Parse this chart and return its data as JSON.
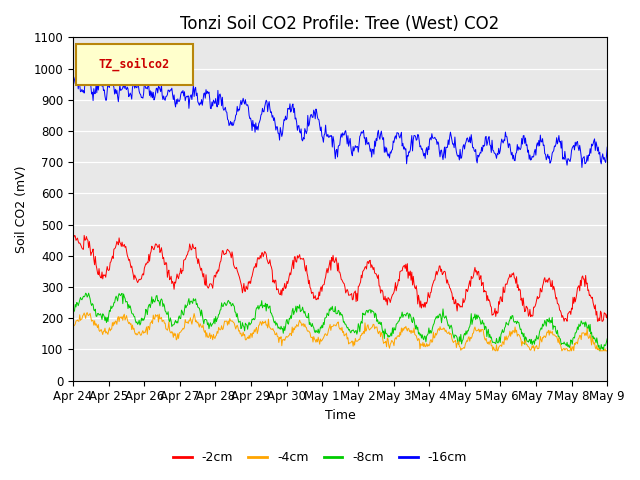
{
  "title": "Tonzi Soil CO2 Profile: Tree (West) CO2",
  "xlabel": "Time",
  "ylabel": "Soil CO2 (mV)",
  "legend_label": "TZ_soilco2",
  "ylim": [
    0,
    1100
  ],
  "series_labels": [
    "-2cm",
    "-4cm",
    "-8cm",
    "-16cm"
  ],
  "series_colors": [
    "#ff0000",
    "#ffa500",
    "#00cc00",
    "#0000ff"
  ],
  "background_color": "#e8e8e8",
  "x_tick_labels": [
    "Apr 24",
    "Apr 25",
    "Apr 26",
    "Apr 27",
    "Apr 28",
    "Apr 29",
    "Apr 30",
    "May 1",
    "May 2",
    "May 3",
    "May 4",
    "May 5",
    "May 6",
    "May 7",
    "May 8",
    "May 9"
  ],
  "n_points": 720,
  "title_fontsize": 12,
  "axis_fontsize": 9,
  "tick_fontsize": 8.5
}
